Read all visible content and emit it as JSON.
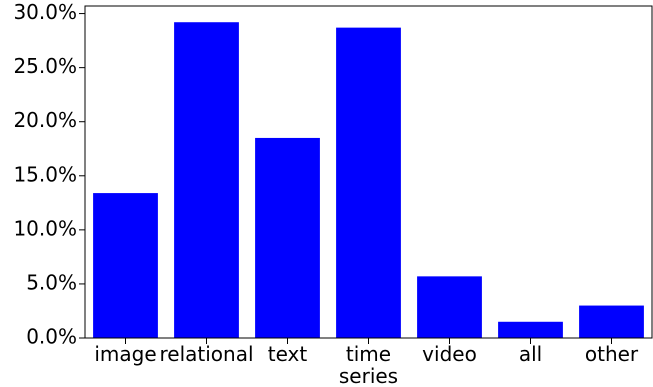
{
  "chart_data": {
    "type": "bar",
    "title": "",
    "xlabel": "",
    "ylabel": "",
    "categories": [
      [
        "image"
      ],
      [
        "relational"
      ],
      [
        "text"
      ],
      [
        "time",
        "series"
      ],
      [
        "video"
      ],
      [
        "all"
      ],
      [
        "other"
      ]
    ],
    "values": [
      13.4,
      29.2,
      18.5,
      28.7,
      5.7,
      1.5,
      3.0
    ],
    "ylim": [
      0,
      30.7
    ],
    "yticks": [
      0,
      5,
      10,
      15,
      20,
      25,
      30
    ],
    "ytick_labels": [
      "0.0%",
      "5.0%",
      "10.0%",
      "15.0%",
      "20.0%",
      "25.0%",
      "30.0%"
    ],
    "bar_color": "#0000ff",
    "grid": false,
    "legend": "none"
  }
}
